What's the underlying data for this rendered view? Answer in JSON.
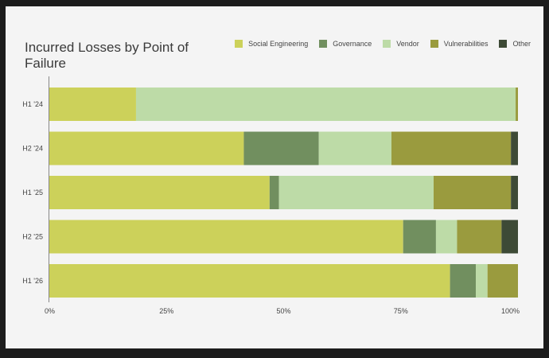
{
  "chart_data": {
    "type": "bar",
    "orientation": "horizontal",
    "stacked": true,
    "title": "Incurred Losses by Point of Failure",
    "categories": [
      "H1 '24",
      "H2 '24",
      "H1 '25",
      "H2 '25",
      "H1 '26"
    ],
    "series": [
      {
        "name": "Social Engineering",
        "color": "#ccd15a",
        "values": [
          18.5,
          41.5,
          47,
          75.5,
          85.5
        ]
      },
      {
        "name": "Governance",
        "color": "#718f5f",
        "values": [
          0,
          16,
          2,
          7,
          5.5
        ]
      },
      {
        "name": "Vendor",
        "color": "#bddba7",
        "values": [
          81,
          15.5,
          33,
          4.5,
          2.5
        ]
      },
      {
        "name": "Vulnerabilities",
        "color": "#9a9b3e",
        "values": [
          0.5,
          25.5,
          16.5,
          9.5,
          6.5
        ]
      },
      {
        "name": "Other",
        "color": "#3d4a36",
        "values": [
          0,
          1.5,
          1.5,
          3.5,
          0
        ]
      }
    ],
    "x_ticks": [
      "0%",
      "25%",
      "50%",
      "75%",
      "100%"
    ],
    "xlim": [
      0,
      100
    ],
    "legend_position": "top-right",
    "grid": false
  }
}
